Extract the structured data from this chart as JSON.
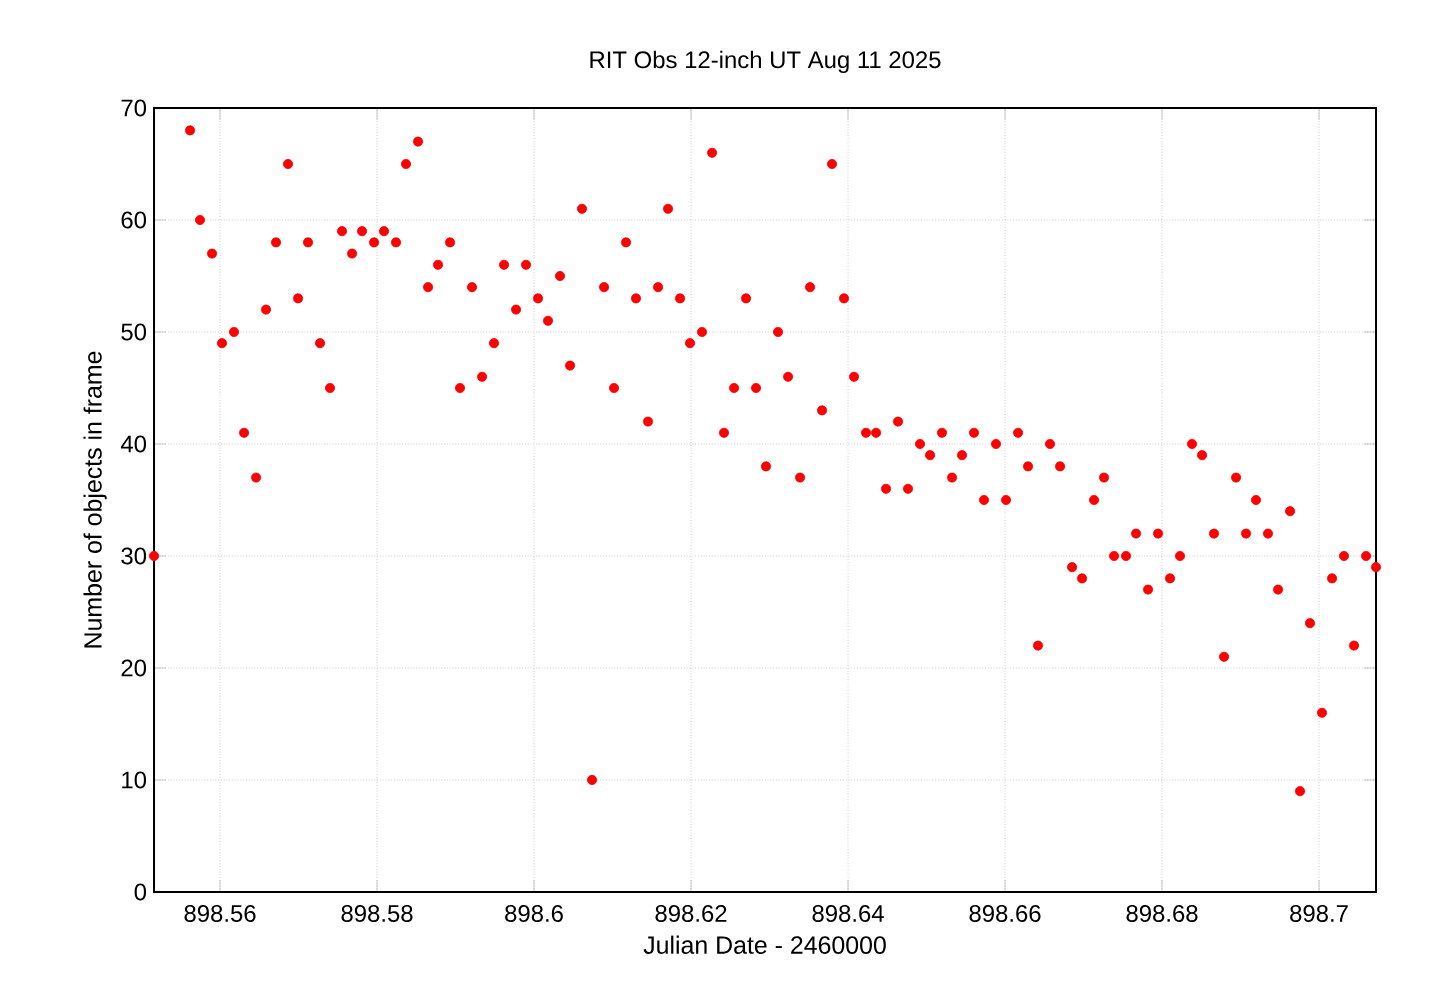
{
  "chart_data": {
    "type": "scatter",
    "title": "RIT Obs 12-inch UT Aug 11 2025",
    "xlabel": "Julian Date - 2460000",
    "ylabel": "Number of objects in frame",
    "x": [
      898.55159,
      898.55618,
      898.55745,
      898.55898,
      898.56025,
      898.56178,
      898.56306,
      898.56459,
      898.56586,
      898.56713,
      898.56866,
      898.56994,
      898.57121,
      898.57274,
      898.57401,
      898.57554,
      898.57682,
      898.57809,
      898.57962,
      898.58089,
      898.58242,
      898.58369,
      898.58522,
      898.5865,
      898.58777,
      898.5893,
      898.59057,
      898.5921,
      898.59338,
      898.5949,
      898.59618,
      898.59771,
      898.59898,
      898.60051,
      898.60178,
      898.60331,
      898.60459,
      898.60611,
      898.60739,
      898.60892,
      898.61019,
      898.61172,
      898.61299,
      898.61452,
      898.6158,
      898.61707,
      898.6186,
      898.61987,
      898.6214,
      898.62268,
      898.6242,
      898.62548,
      898.62701,
      898.62828,
      898.62955,
      898.63108,
      898.63236,
      898.63389,
      898.63516,
      898.63669,
      898.63796,
      898.63949,
      898.64076,
      898.64229,
      898.64357,
      898.64484,
      898.64637,
      898.64764,
      898.64917,
      898.65045,
      898.65197,
      898.65325,
      898.65452,
      898.65605,
      898.65732,
      898.65885,
      898.66013,
      898.66166,
      898.66293,
      898.6642,
      898.66573,
      898.66701,
      898.66854,
      898.66981,
      898.67134,
      898.67261,
      898.67389,
      898.67541,
      898.67669,
      898.67822,
      898.67949,
      898.68102,
      898.68229,
      898.68382,
      898.6851,
      898.68662,
      898.6879,
      898.68943,
      898.6907,
      898.69197,
      898.6935,
      898.69478,
      898.69631,
      898.69758,
      898.69885,
      898.70038,
      898.70166,
      898.70318,
      898.70446,
      898.70599,
      898.70726
    ],
    "series": [
      {
        "color": "#ff0000",
        "values": [
          30,
          68,
          60,
          57,
          49,
          50,
          41,
          37,
          52,
          58,
          65,
          53,
          58,
          49,
          45,
          59,
          57,
          59,
          58,
          59,
          58,
          65,
          67,
          54,
          56,
          58,
          45,
          54,
          46,
          49,
          56,
          52,
          56,
          53,
          51,
          55,
          47,
          61,
          10,
          54,
          45,
          58,
          53,
          42,
          54,
          61,
          53,
          49,
          50,
          66,
          41,
          45,
          53,
          45,
          38,
          50,
          46,
          37,
          54,
          43,
          65,
          53,
          46,
          41,
          41,
          36,
          42,
          36,
          40,
          39,
          41,
          37,
          39,
          41,
          35,
          40,
          35,
          41,
          38,
          22,
          40,
          38,
          29,
          28,
          35,
          37,
          30,
          30,
          32,
          27,
          32,
          28,
          30,
          40,
          39,
          32,
          21,
          37,
          32,
          35,
          32,
          27,
          34,
          9,
          24,
          16,
          28,
          30,
          22,
          30,
          29
        ]
      }
    ],
    "xlim": [
      898.55159,
      898.70726
    ],
    "ylim": [
      0,
      70
    ],
    "xticks": [
      898.56,
      898.58,
      898.6,
      898.62,
      898.64,
      898.66,
      898.68,
      898.7
    ],
    "yticks": [
      0,
      10,
      20,
      30,
      40,
      50,
      60,
      70
    ],
    "grid": true,
    "marker": "circle"
  }
}
